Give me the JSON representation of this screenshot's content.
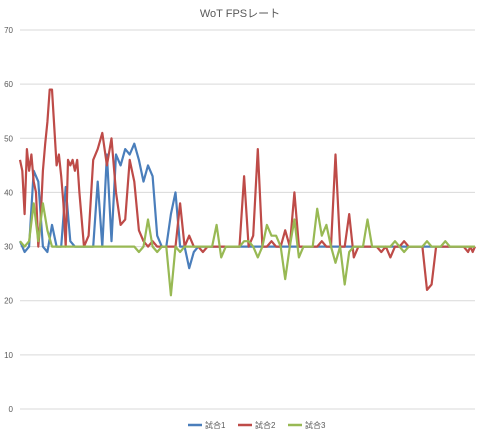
{
  "chart_data": {
    "type": "line",
    "title": "WoT FPSレート",
    "xlabel": "",
    "ylabel": "",
    "ylim": [
      0,
      70
    ],
    "yticks": [
      0,
      10,
      20,
      30,
      40,
      50,
      60,
      70
    ],
    "grid": true,
    "legend_position": "bottom",
    "n_points": 200,
    "series": [
      {
        "name": "試合1",
        "color": "#4a7ebb",
        "points": [
          [
            0,
            31
          ],
          [
            2,
            29
          ],
          [
            4,
            30
          ],
          [
            6,
            44
          ],
          [
            8,
            42
          ],
          [
            10,
            30
          ],
          [
            12,
            29
          ],
          [
            14,
            34
          ],
          [
            16,
            30
          ],
          [
            18,
            30
          ],
          [
            20,
            41
          ],
          [
            22,
            31
          ],
          [
            24,
            30
          ],
          [
            26,
            30
          ],
          [
            28,
            30
          ],
          [
            30,
            30
          ],
          [
            32,
            30
          ],
          [
            34,
            42
          ],
          [
            36,
            30
          ],
          [
            38,
            47
          ],
          [
            40,
            31
          ],
          [
            42,
            47
          ],
          [
            44,
            45
          ],
          [
            46,
            48
          ],
          [
            48,
            47
          ],
          [
            50,
            49
          ],
          [
            52,
            46
          ],
          [
            54,
            42
          ],
          [
            56,
            45
          ],
          [
            58,
            43
          ],
          [
            60,
            32
          ],
          [
            62,
            30
          ],
          [
            64,
            30
          ],
          [
            66,
            36
          ],
          [
            68,
            40
          ],
          [
            70,
            30
          ],
          [
            72,
            30
          ],
          [
            74,
            26
          ],
          [
            76,
            29
          ],
          [
            78,
            30
          ],
          [
            80,
            30
          ],
          [
            84,
            30
          ],
          [
            90,
            30
          ],
          [
            100,
            30
          ],
          [
            110,
            30
          ],
          [
            120,
            30
          ],
          [
            130,
            30
          ],
          [
            140,
            30
          ],
          [
            150,
            30
          ],
          [
            160,
            30
          ],
          [
            170,
            30
          ],
          [
            180,
            30
          ],
          [
            190,
            30
          ],
          [
            199,
            30
          ]
        ]
      },
      {
        "name": "試合2",
        "color": "#be4b48",
        "points": [
          [
            0,
            46
          ],
          [
            1,
            44
          ],
          [
            2,
            36
          ],
          [
            3,
            48
          ],
          [
            4,
            44
          ],
          [
            5,
            47
          ],
          [
            6,
            42
          ],
          [
            7,
            40
          ],
          [
            8,
            30
          ],
          [
            9,
            35
          ],
          [
            10,
            44
          ],
          [
            11,
            49
          ],
          [
            12,
            53
          ],
          [
            13,
            59
          ],
          [
            14,
            59
          ],
          [
            15,
            52
          ],
          [
            16,
            45
          ],
          [
            17,
            47
          ],
          [
            18,
            43
          ],
          [
            19,
            38
          ],
          [
            20,
            30
          ],
          [
            21,
            46
          ],
          [
            22,
            45
          ],
          [
            23,
            46
          ],
          [
            24,
            44
          ],
          [
            25,
            46
          ],
          [
            26,
            40
          ],
          [
            27,
            35
          ],
          [
            28,
            30
          ],
          [
            30,
            32
          ],
          [
            32,
            46
          ],
          [
            34,
            48
          ],
          [
            36,
            51
          ],
          [
            38,
            45
          ],
          [
            40,
            50
          ],
          [
            42,
            40
          ],
          [
            44,
            34
          ],
          [
            46,
            35
          ],
          [
            48,
            46
          ],
          [
            50,
            42
          ],
          [
            52,
            33
          ],
          [
            54,
            31
          ],
          [
            56,
            30
          ],
          [
            58,
            31
          ],
          [
            60,
            30
          ],
          [
            62,
            30
          ],
          [
            64,
            30
          ],
          [
            66,
            30
          ],
          [
            68,
            30
          ],
          [
            70,
            38
          ],
          [
            72,
            30
          ],
          [
            74,
            32
          ],
          [
            76,
            30
          ],
          [
            78,
            30
          ],
          [
            80,
            29
          ],
          [
            82,
            30
          ],
          [
            84,
            30
          ],
          [
            86,
            30
          ],
          [
            88,
            30
          ],
          [
            90,
            30
          ],
          [
            92,
            30
          ],
          [
            94,
            30
          ],
          [
            96,
            30
          ],
          [
            98,
            43
          ],
          [
            100,
            30
          ],
          [
            102,
            32
          ],
          [
            104,
            48
          ],
          [
            106,
            30
          ],
          [
            108,
            30
          ],
          [
            110,
            31
          ],
          [
            112,
            30
          ],
          [
            114,
            30
          ],
          [
            116,
            33
          ],
          [
            118,
            30
          ],
          [
            120,
            40
          ],
          [
            122,
            30
          ],
          [
            124,
            30
          ],
          [
            126,
            30
          ],
          [
            128,
            30
          ],
          [
            130,
            30
          ],
          [
            132,
            31
          ],
          [
            134,
            30
          ],
          [
            136,
            30
          ],
          [
            138,
            47
          ],
          [
            140,
            30
          ],
          [
            142,
            30
          ],
          [
            144,
            36
          ],
          [
            146,
            28
          ],
          [
            148,
            30
          ],
          [
            150,
            30
          ],
          [
            152,
            30
          ],
          [
            154,
            30
          ],
          [
            156,
            30
          ],
          [
            158,
            29
          ],
          [
            160,
            30
          ],
          [
            162,
            28
          ],
          [
            164,
            30
          ],
          [
            166,
            30
          ],
          [
            168,
            31
          ],
          [
            170,
            30
          ],
          [
            172,
            30
          ],
          [
            174,
            30
          ],
          [
            176,
            30
          ],
          [
            178,
            22
          ],
          [
            180,
            23
          ],
          [
            182,
            30
          ],
          [
            184,
            30
          ],
          [
            186,
            30
          ],
          [
            188,
            30
          ],
          [
            190,
            30
          ],
          [
            192,
            30
          ],
          [
            194,
            30
          ],
          [
            196,
            29
          ],
          [
            197,
            30
          ],
          [
            198,
            29
          ],
          [
            199,
            30
          ]
        ]
      },
      {
        "name": "試合3",
        "color": "#98b954",
        "points": [
          [
            0,
            31
          ],
          [
            2,
            30
          ],
          [
            4,
            31
          ],
          [
            6,
            38
          ],
          [
            8,
            31
          ],
          [
            10,
            38
          ],
          [
            12,
            33
          ],
          [
            14,
            30
          ],
          [
            16,
            30
          ],
          [
            18,
            30
          ],
          [
            20,
            30
          ],
          [
            22,
            30
          ],
          [
            24,
            30
          ],
          [
            26,
            30
          ],
          [
            28,
            30
          ],
          [
            30,
            30
          ],
          [
            32,
            30
          ],
          [
            34,
            30
          ],
          [
            36,
            30
          ],
          [
            38,
            30
          ],
          [
            40,
            30
          ],
          [
            42,
            30
          ],
          [
            44,
            30
          ],
          [
            46,
            30
          ],
          [
            48,
            30
          ],
          [
            50,
            30
          ],
          [
            52,
            29
          ],
          [
            54,
            30
          ],
          [
            56,
            35
          ],
          [
            58,
            30
          ],
          [
            60,
            29
          ],
          [
            62,
            30
          ],
          [
            64,
            30
          ],
          [
            66,
            21
          ],
          [
            68,
            30
          ],
          [
            70,
            29
          ],
          [
            72,
            30
          ],
          [
            74,
            30
          ],
          [
            76,
            30
          ],
          [
            78,
            30
          ],
          [
            80,
            30
          ],
          [
            82,
            30
          ],
          [
            84,
            30
          ],
          [
            86,
            34
          ],
          [
            88,
            28
          ],
          [
            90,
            30
          ],
          [
            92,
            30
          ],
          [
            94,
            30
          ],
          [
            96,
            30
          ],
          [
            98,
            31
          ],
          [
            100,
            31
          ],
          [
            102,
            30
          ],
          [
            104,
            28
          ],
          [
            106,
            30
          ],
          [
            108,
            34
          ],
          [
            110,
            32
          ],
          [
            112,
            32
          ],
          [
            114,
            30
          ],
          [
            116,
            24
          ],
          [
            118,
            30
          ],
          [
            120,
            35
          ],
          [
            122,
            28
          ],
          [
            124,
            30
          ],
          [
            126,
            30
          ],
          [
            128,
            30
          ],
          [
            130,
            37
          ],
          [
            132,
            32
          ],
          [
            134,
            34
          ],
          [
            136,
            30
          ],
          [
            138,
            27
          ],
          [
            140,
            30
          ],
          [
            142,
            23
          ],
          [
            144,
            29
          ],
          [
            146,
            30
          ],
          [
            148,
            30
          ],
          [
            150,
            30
          ],
          [
            152,
            35
          ],
          [
            154,
            30
          ],
          [
            156,
            30
          ],
          [
            158,
            30
          ],
          [
            160,
            30
          ],
          [
            162,
            30
          ],
          [
            164,
            31
          ],
          [
            166,
            30
          ],
          [
            168,
            29
          ],
          [
            170,
            30
          ],
          [
            172,
            30
          ],
          [
            174,
            30
          ],
          [
            176,
            30
          ],
          [
            178,
            31
          ],
          [
            180,
            30
          ],
          [
            182,
            30
          ],
          [
            184,
            30
          ],
          [
            186,
            31
          ],
          [
            188,
            30
          ],
          [
            190,
            30
          ],
          [
            192,
            30
          ],
          [
            194,
            30
          ],
          [
            196,
            30
          ],
          [
            198,
            30
          ],
          [
            199,
            30
          ]
        ]
      }
    ]
  }
}
